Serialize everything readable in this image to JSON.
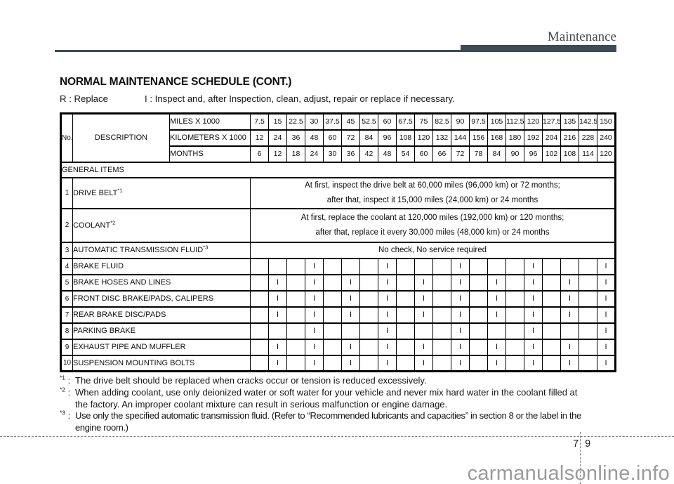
{
  "page": {
    "section_header": "Maintenance",
    "title": "NORMAL MAINTENANCE SCHEDULE (CONT.)",
    "legend_replace": "R : Replace",
    "legend_inspect": "I : Inspect and, after Inspection, clean, adjust, repair or replace if necessary.",
    "page_number_left": "7",
    "page_number_right": "9",
    "watermark": "carmanualsonline.info",
    "accent_color": "#3e4b55",
    "watermark_color": "#9b9b9b"
  },
  "table": {
    "headers": {
      "no": "No.",
      "description": "DESCRIPTION",
      "miles": "MILES X 1000",
      "kilometers": "KILOMETERS X 1000",
      "months": "MONTHS"
    },
    "miles_values": [
      "7.5",
      "15",
      "22.5",
      "30",
      "37.5",
      "45",
      "52.5",
      "60",
      "67.5",
      "75",
      "82.5",
      "90",
      "97.5",
      "105",
      "112.5",
      "120",
      "127.5",
      "135",
      "142.5",
      "150"
    ],
    "km_values": [
      "12",
      "24",
      "36",
      "48",
      "60",
      "72",
      "84",
      "96",
      "108",
      "120",
      "132",
      "144",
      "156",
      "168",
      "180",
      "192",
      "204",
      "216",
      "228",
      "240"
    ],
    "months_values": [
      "6",
      "12",
      "18",
      "24",
      "30",
      "36",
      "42",
      "48",
      "54",
      "60",
      "66",
      "72",
      "78",
      "84",
      "90",
      "96",
      "102",
      "108",
      "114",
      "120"
    ],
    "section": "GENERAL ITEMS",
    "note_rows": [
      {
        "no": "1",
        "name": "DRIVE BELT",
        "sup": "*1",
        "lines": [
          "At first, inspect the drive belt at 60,000 miles (96,000 km) or 72 months;",
          "after that, inspect it 15,000 miles (24,000 km) or 24 months"
        ]
      },
      {
        "no": "2",
        "name": "COOLANT",
        "sup": "*2",
        "lines": [
          "At first, replace the coolant at 120,000 miles (192,000 km) or 120 months;",
          "after that, replace it every 30,000 miles (48,000 km) or 24 months"
        ]
      },
      {
        "no": "3",
        "name": "AUTOMATIC TRANSMISSION FLUID",
        "sup": "*3",
        "lines": [
          "No check, No service required"
        ]
      }
    ],
    "item_rows": [
      {
        "no": "4",
        "name": "BRAKE FLUID",
        "marks": [
          "",
          "",
          "",
          "I",
          "",
          "",
          "",
          "I",
          "",
          "",
          "",
          "I",
          "",
          "",
          "",
          "I",
          "",
          "",
          "",
          "I"
        ]
      },
      {
        "no": "5",
        "name": "BRAKE HOSES AND LINES",
        "marks": [
          "",
          "I",
          "",
          "I",
          "",
          "I",
          "",
          "I",
          "",
          "I",
          "",
          "I",
          "",
          "I",
          "",
          "I",
          "",
          "I",
          "",
          "I"
        ]
      },
      {
        "no": "6",
        "name": "FRONT DISC BRAKE/PADS, CALIPERS",
        "marks": [
          "",
          "I",
          "",
          "I",
          "",
          "I",
          "",
          "I",
          "",
          "I",
          "",
          "I",
          "",
          "I",
          "",
          "I",
          "",
          "I",
          "",
          "I"
        ]
      },
      {
        "no": "7",
        "name": "REAR BRAKE DISC/PADS",
        "marks": [
          "",
          "I",
          "",
          "I",
          "",
          "I",
          "",
          "I",
          "",
          "I",
          "",
          "I",
          "",
          "I",
          "",
          "I",
          "",
          "I",
          "",
          "I"
        ]
      },
      {
        "no": "8",
        "name": "PARKING BRAKE",
        "marks": [
          "",
          "",
          "",
          "I",
          "",
          "",
          "",
          "I",
          "",
          "",
          "",
          "I",
          "",
          "",
          "",
          "I",
          "",
          "",
          "",
          "I"
        ]
      },
      {
        "no": "9",
        "name": "EXHAUST PIPE AND MUFFLER",
        "marks": [
          "",
          "I",
          "",
          "I",
          "",
          "I",
          "",
          "I",
          "",
          "I",
          "",
          "I",
          "",
          "I",
          "",
          "I",
          "",
          "I",
          "",
          "I"
        ]
      },
      {
        "no": "10",
        "name": "SUSPENSION MOUNTING BOLTS",
        "marks": [
          "",
          "I",
          "",
          "I",
          "",
          "I",
          "",
          "I",
          "",
          "I",
          "",
          "I",
          "",
          "I",
          "",
          "I",
          "",
          "I",
          "",
          "I"
        ]
      }
    ]
  },
  "footnotes": [
    {
      "marker": "*1",
      "colon": ":",
      "lines": [
        "The drive belt should be replaced when cracks occur or tension is reduced excessively."
      ]
    },
    {
      "marker": "*2",
      "colon": ":",
      "lines": [
        "When adding coolant, use only deionized water or soft water for your vehicle and never mix hard water in the coolant filled at",
        "the factory. An improper coolant mixture can result in serious malfunction or engine damage."
      ]
    },
    {
      "marker": "*3",
      "colon": ":",
      "lines": [
        "Use only the specified automatic transmission fluid. (Refer to “Recommended lubricants and capacities” in section 8 or the label in the",
        "engine room.)"
      ]
    }
  ]
}
